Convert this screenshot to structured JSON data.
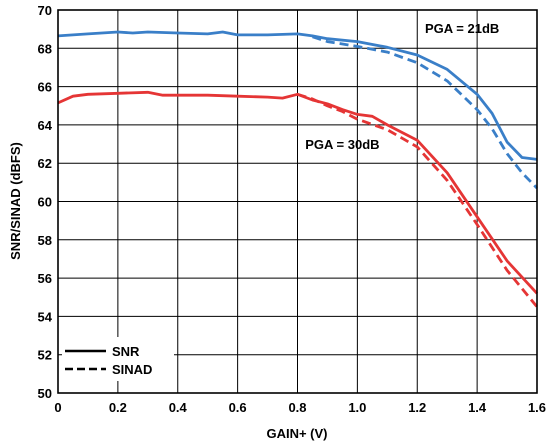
{
  "chart_data": {
    "type": "line",
    "title": "",
    "xlabel": "GAIN+ (V)",
    "ylabel": "SNR/SINAD (dBFS)",
    "xlim": [
      0,
      1.6
    ],
    "ylim": [
      50,
      70
    ],
    "xticks": [
      0,
      0.2,
      0.4,
      0.6,
      0.8,
      1.0,
      1.2,
      1.4,
      1.6
    ],
    "xtick_labels": [
      "0",
      "0.2",
      "0.4",
      "0.6",
      "0.8",
      "1.0",
      "1.2",
      "1.4",
      "1.6"
    ],
    "yticks": [
      50,
      52,
      54,
      56,
      58,
      60,
      62,
      64,
      66,
      68,
      70
    ],
    "ytick_labels": [
      "50",
      "52",
      "54",
      "56",
      "58",
      "60",
      "62",
      "64",
      "66",
      "68",
      "70"
    ],
    "grid": true,
    "legend": {
      "position": "bottom-left",
      "entries": [
        {
          "label": "SNR",
          "style": "solid"
        },
        {
          "label": "SINAD",
          "style": "dashed"
        }
      ]
    },
    "annotations": [
      {
        "text": "PGA = 21dB",
        "x": 1.35,
        "y": 68.8
      },
      {
        "text": "PGA = 30dB",
        "x": 0.95,
        "y": 62.75
      }
    ],
    "series": [
      {
        "pga": "21dB",
        "metric": "SNR",
        "color": "#3a7fc8",
        "style": "solid",
        "x": [
          0,
          0.1,
          0.2,
          0.25,
          0.3,
          0.4,
          0.5,
          0.55,
          0.6,
          0.7,
          0.8,
          0.85,
          0.9,
          1.0,
          1.1,
          1.2,
          1.3,
          1.4,
          1.45,
          1.5,
          1.55,
          1.6
        ],
        "y": [
          68.65,
          68.75,
          68.85,
          68.8,
          68.85,
          68.8,
          68.75,
          68.85,
          68.7,
          68.7,
          68.75,
          68.65,
          68.5,
          68.35,
          68.05,
          67.65,
          66.9,
          65.6,
          64.6,
          63.1,
          62.3,
          62.2
        ]
      },
      {
        "pga": "21dB",
        "metric": "SINAD",
        "color": "#3a7fc8",
        "style": "dashed",
        "x": [
          0.85,
          0.9,
          1.0,
          1.1,
          1.2,
          1.3,
          1.4,
          1.45,
          1.5,
          1.55,
          1.6
        ],
        "y": [
          68.6,
          68.35,
          68.1,
          67.8,
          67.25,
          66.3,
          64.8,
          63.8,
          62.5,
          61.5,
          60.7
        ]
      },
      {
        "pga": "30dB",
        "metric": "SNR",
        "color": "#e53535",
        "style": "solid",
        "x": [
          0,
          0.05,
          0.1,
          0.2,
          0.3,
          0.35,
          0.4,
          0.5,
          0.6,
          0.7,
          0.75,
          0.8,
          0.85,
          0.9,
          0.95,
          1.0,
          1.05,
          1.1,
          1.2,
          1.3,
          1.4,
          1.5,
          1.6
        ],
        "y": [
          65.15,
          65.5,
          65.6,
          65.65,
          65.7,
          65.55,
          65.55,
          65.55,
          65.5,
          65.45,
          65.4,
          65.6,
          65.3,
          65.1,
          64.8,
          64.55,
          64.45,
          64.0,
          63.2,
          61.5,
          59.2,
          56.9,
          55.2
        ]
      },
      {
        "pga": "30dB",
        "metric": "SINAD",
        "color": "#e53535",
        "style": "dashed",
        "x": [
          0.8,
          0.85,
          0.9,
          0.95,
          1.0,
          1.1,
          1.2,
          1.3,
          1.4,
          1.5,
          1.6
        ],
        "y": [
          65.6,
          65.35,
          65.0,
          64.7,
          64.3,
          63.75,
          62.85,
          61.1,
          58.8,
          56.4,
          54.5
        ]
      }
    ]
  }
}
